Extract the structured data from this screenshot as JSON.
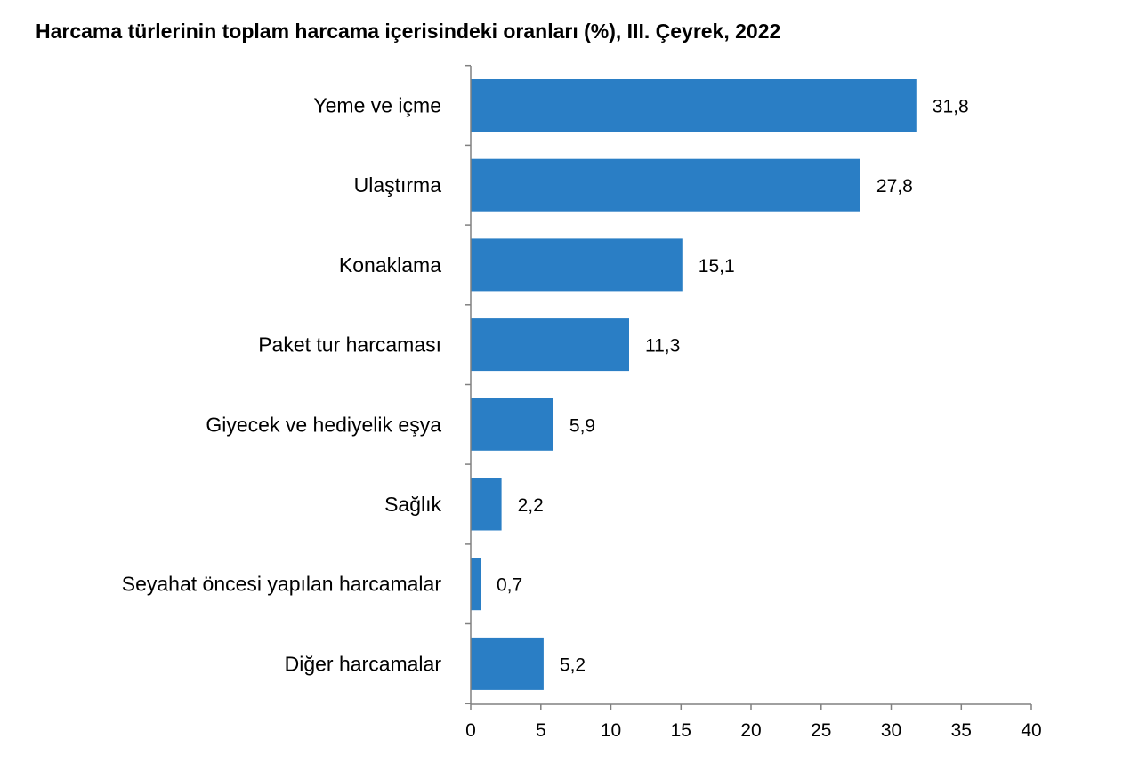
{
  "chart_data": {
    "type": "bar",
    "orientation": "horizontal",
    "title": "Harcama türlerinin toplam harcama içerisindeki oranları (%), III. Çeyrek, 2022",
    "categories": [
      "Yeme ve içme",
      "Ulaştırma",
      "Konaklama",
      "Paket tur harcaması",
      "Giyecek ve hediyelik eşya",
      "Sağlık",
      "Seyahat öncesi yapılan harcamalar",
      "Diğer harcamalar"
    ],
    "values": [
      31.8,
      27.8,
      15.1,
      11.3,
      5.9,
      2.2,
      0.7,
      5.2
    ],
    "value_labels": [
      "31,8",
      "27,8",
      "15,1",
      "11,3",
      "5,9",
      "2,2",
      "0,7",
      "5,2"
    ],
    "xlim": [
      0,
      40
    ],
    "xticks": [
      0,
      5,
      10,
      15,
      20,
      25,
      30,
      35,
      40
    ],
    "xlabel": "",
    "ylabel": "",
    "grid": false,
    "legend": "none",
    "bar_color": "#2a7ec5"
  }
}
